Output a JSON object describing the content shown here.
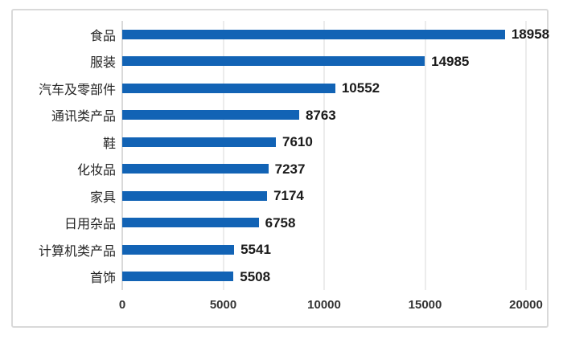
{
  "chart_data": {
    "type": "bar",
    "orientation": "horizontal",
    "title": "",
    "xlabel": "",
    "ylabel": "",
    "categories": [
      "食品",
      "服装",
      "汽车及零部件",
      "通讯类产品",
      "鞋",
      "化妆品",
      "家具",
      "日用杂品",
      "计算机类产品",
      "首饰"
    ],
    "values": [
      18958,
      14985,
      10552,
      8763,
      7610,
      7237,
      7174,
      6758,
      5541,
      5508
    ],
    "data_labels": [
      "18958",
      "14985",
      "10552",
      "8763",
      "7610",
      "7237",
      "7174",
      "6758",
      "5541",
      "5508"
    ],
    "xlim": [
      0,
      20000
    ],
    "x_ticks": [
      0,
      5000,
      10000,
      15000,
      20000
    ],
    "x_tick_labels": [
      "0",
      "5000",
      "10000",
      "15000",
      "20000"
    ],
    "grid": "vertical-gridlines",
    "legend": "none"
  },
  "colors": {
    "bar": "#1263b5",
    "gridline": "#d9d9d9",
    "axis_line": "#b3b3b3",
    "frame_border": "#d9d9d9",
    "category_text": "#262626",
    "value_text": "#1a1a1a",
    "tick_text": "#333333",
    "background": "#ffffff"
  }
}
